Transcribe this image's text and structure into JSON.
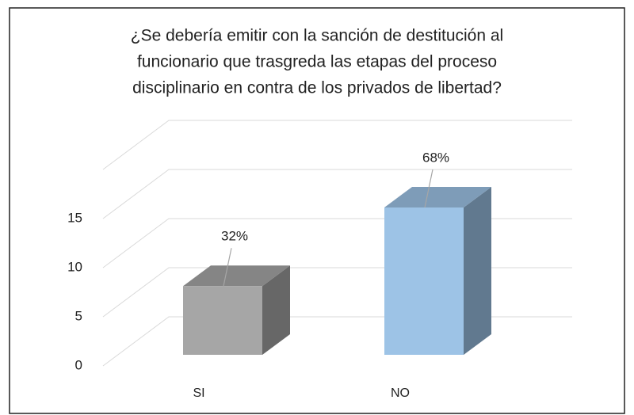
{
  "chart_data": {
    "type": "bar3d",
    "title": [
      "¿Se debería emitir con la sanción de destitución al",
      "funcionario que trasgreda las etapas del proceso",
      "disciplinario en contra de los privados de libertad?"
    ],
    "categories": [
      "SI",
      "NO"
    ],
    "values": [
      7,
      15
    ],
    "data_labels": [
      "32%",
      "68%"
    ],
    "colors": [
      "#a6a6a6",
      "#9dc3e6"
    ],
    "ylim": [
      0,
      20
    ],
    "yticks": [
      0,
      5,
      10,
      15
    ],
    "grid": true
  }
}
